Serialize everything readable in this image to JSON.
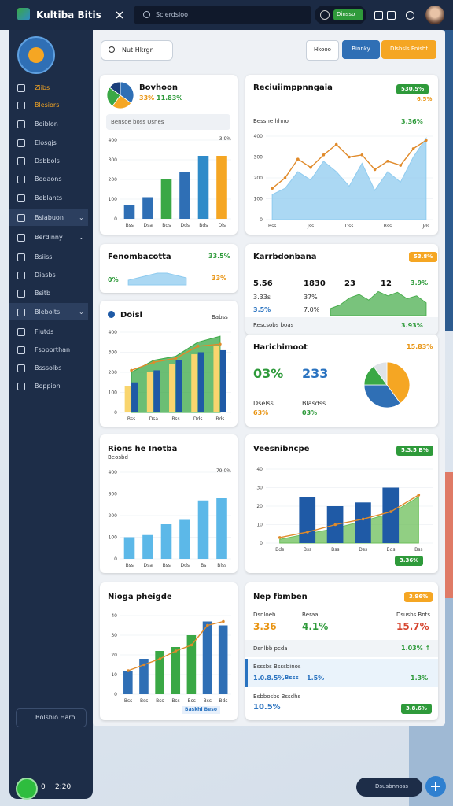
{
  "topbar": {
    "app_name": "Kultiba Bitis",
    "search": "Scierdsloo",
    "toggle": "Dinsso"
  },
  "sidebar": {
    "items": [
      "Ziibs",
      "Blesiors",
      "Boiblon",
      "Elosgjs",
      "Dsbbols",
      "Bodaons",
      "Beblants",
      "Bsiabuon",
      "Berdinny",
      "Bsiiss",
      "Diasbs",
      "Bsitb",
      "Blebolts",
      "Flutds",
      "Fsoporthan",
      "Bsssolbs",
      "Boppion"
    ],
    "footer": "Bolshio Haro",
    "status_count": "0",
    "status_time": "2:20"
  },
  "toolbar": {
    "search": "Nut Hkrgn",
    "buttons": [
      "Hkooo",
      "Binnky",
      "Dlsbsls Fnisht"
    ]
  },
  "floating": {
    "label": "Dsusbnnoss"
  },
  "cards": [
    {
      "title": "Bovhoon",
      "subtitle": [
        "33%",
        "11.83%"
      ],
      "legend": "Bensoe boss Usnes",
      "pie": {
        "type": "pie",
        "values": [
          35,
          25,
          25,
          15
        ],
        "colors": [
          "#2f6fb5",
          "#f5a623",
          "#3aa845",
          "#1b3f7a"
        ]
      },
      "chart": {
        "type": "bar",
        "note": "3.9%",
        "categories": [
          "Bss",
          "Dsa",
          "Bds",
          "Dds",
          "Bds",
          "Dls"
        ],
        "ylim": [
          0,
          400
        ],
        "yticks": [
          0,
          100,
          200,
          300,
          400
        ],
        "series": [
          {
            "kind": "bar",
            "colors": [
              "#2f6fb5",
              "#2f6fb5",
              "#3aa845",
              "#2f6fb5",
              "#2f8bc9",
              "#f5a623"
            ],
            "values": [
              70,
              110,
              200,
              240,
              320,
              320
            ]
          }
        ]
      }
    },
    {
      "title": "Reciuiimppnngaia",
      "badge": "530.5%",
      "badge2": "6.5%",
      "subtitle": "Bessne hhno",
      "value": "3.36%",
      "chart": {
        "type": "area",
        "categories": [
          "Bss",
          null,
          null,
          "Jss",
          null,
          null,
          "Dss",
          null,
          null,
          "Bss",
          null,
          null,
          "Jds"
        ],
        "ylim": [
          0,
          400
        ],
        "yticks": [
          0,
          100,
          200,
          300,
          400
        ],
        "series": [
          {
            "kind": "area",
            "color": "#8fcbef",
            "values": [
              120,
              150,
              230,
              190,
              280,
              230,
              160,
              270,
              140,
              230,
              180,
              300,
              390
            ]
          },
          {
            "kind": "line",
            "color": "#e08a2a",
            "values": [
              150,
              200,
              290,
              250,
              310,
              360,
              300,
              310,
              240,
              280,
              260,
              340,
              380
            ]
          }
        ]
      }
    },
    {
      "title": "Fenombacotta",
      "value": "33.5%",
      "value2": "33%",
      "delta": "0%",
      "chart": {
        "type": "area",
        "ylim": [
          0,
          6
        ],
        "series": [
          {
            "kind": "area",
            "color": "#8fcbef",
            "values": [
              2,
              3,
              4,
              5,
              5,
              4,
              3
            ]
          }
        ]
      }
    },
    {
      "title": "Doisl",
      "badge": "Babss",
      "chart": {
        "type": "bar",
        "categories": [
          "Bss",
          "Dsa",
          "Bss",
          "Dds",
          "Bds"
        ],
        "ylim": [
          0,
          400
        ],
        "yticks": [
          0,
          100,
          200,
          300,
          400
        ],
        "series": [
          {
            "kind": "area",
            "color": "#3aa845",
            "values": [
              200,
              260,
              280,
              350,
              380
            ]
          },
          {
            "kind": "bar",
            "color": "#f9d56e",
            "values": [
              130,
              200,
              240,
              290,
              330
            ]
          },
          {
            "kind": "bar",
            "color": "#1f5aa6",
            "values": [
              150,
              210,
              260,
              300,
              310
            ]
          },
          {
            "kind": "line",
            "color": "#e08a2a",
            "values": [
              210,
              250,
              270,
              330,
              340
            ]
          }
        ]
      }
    },
    {
      "title": "Karrbdonbana",
      "badge": "53.8%",
      "stats": [
        "5.56",
        "1830",
        "23",
        "12",
        "3.9%"
      ],
      "stats2": [
        "3.33s",
        "37%"
      ],
      "stats3": [
        "3.5%",
        "7.0%"
      ],
      "footer": "Rescsobs boas",
      "footer_value": "3.93%",
      "chart": {
        "type": "area",
        "ylim": [
          0,
          5
        ],
        "series": [
          {
            "kind": "area",
            "color": "#4caf50",
            "values": [
              1,
              1.5,
              2.5,
              3,
              2.2,
              3.4,
              2.8,
              3.3,
              2.4,
              2.8,
              1.8
            ]
          }
        ]
      }
    },
    {
      "title": "Harichimoot",
      "badge": "15.83%",
      "big1": "03%",
      "big2": "233",
      "label1": "Dselss",
      "val1": "63%",
      "label2": "Blasdss",
      "val2": "03%",
      "pie": {
        "type": "pie",
        "values": [
          40,
          35,
          15,
          10
        ],
        "colors": [
          "#f5a623",
          "#2f6fb5",
          "#3aa845",
          "#dfe3e8"
        ]
      }
    },
    {
      "title": "Rions he Inotba",
      "subtitle": "Beosbd",
      "chart": {
        "type": "bar",
        "note": "79.0%",
        "categories": [
          "Bss",
          "Dsa",
          "Bss",
          "Dds",
          "Bs",
          "Blss"
        ],
        "ylim": [
          0,
          400
        ],
        "yticks": [
          0,
          100,
          200,
          300,
          400
        ],
        "series": [
          {
            "kind": "bar",
            "color": "#5cb8e8",
            "values": [
              100,
              110,
              160,
              180,
              270,
              280
            ]
          }
        ]
      }
    },
    {
      "title": "Veesnibncpe",
      "badge": "5.3.5 B%",
      "footer_badge": "3.36%",
      "chart": {
        "type": "bar",
        "categories": [
          "Bds",
          "Bss",
          "Bss",
          "Dss",
          "Bds",
          "Bss"
        ],
        "ylim": [
          0,
          40
        ],
        "yticks": [
          0,
          10,
          20,
          30,
          40
        ],
        "series": [
          {
            "kind": "area",
            "color": "#6cbf5a",
            "values": [
              2,
              5,
              8,
              12,
              16,
              25
            ]
          },
          {
            "kind": "bar",
            "color": "#1f5aa6",
            "values": [
              null,
              25,
              20,
              22,
              30,
              null
            ]
          },
          {
            "kind": "line",
            "color": "#e08a2a",
            "values": [
              3,
              6,
              10,
              13,
              17,
              26
            ]
          }
        ]
      }
    },
    {
      "title": "Nioga pheigde",
      "badge": "Baskhi Beso",
      "chart": {
        "type": "bar",
        "categories": [
          "Bss",
          "Bss",
          "Bss",
          "Bss",
          "Bss",
          "Bss",
          "Bds"
        ],
        "ylim": [
          0,
          40
        ],
        "yticks": [
          0,
          10,
          20,
          30,
          40
        ],
        "series": [
          {
            "kind": "bar",
            "colors": [
              "#2f6fb5",
              "#2f6fb5",
              "#3aa845",
              "#3aa845",
              "#3aa845",
              "#2f6fb5",
              "#2f6fb5"
            ],
            "values": [
              12,
              18,
              22,
              24,
              30,
              37,
              35
            ]
          },
          {
            "kind": "line",
            "color": "#e08a2a",
            "values": [
              12,
              15,
              18,
              22,
              25,
              35,
              37
            ]
          }
        ]
      }
    },
    {
      "title": "Nep fbmben",
      "badge": "3.96%",
      "stats": [
        {
          "label": "Dsnloeb",
          "value": "3.36"
        },
        {
          "label": "Beraa",
          "value": "4.1%"
        },
        {
          "label": "Dsusbs Bnts",
          "value": "15.7%"
        }
      ],
      "rows": [
        {
          "label": "Dsnlbb pcda",
          "value": "1.03% ↑"
        },
        {
          "label": "Bsssbs Bsssbinos",
          "value": "1.0.8.5%",
          "tag": "Bsss",
          "tag2": "1.5%",
          "value2": "1.3%"
        },
        {
          "label": "Bsbbosbs Bssdhs",
          "value": "10.5%",
          "button": "3.8.6%"
        }
      ]
    }
  ]
}
